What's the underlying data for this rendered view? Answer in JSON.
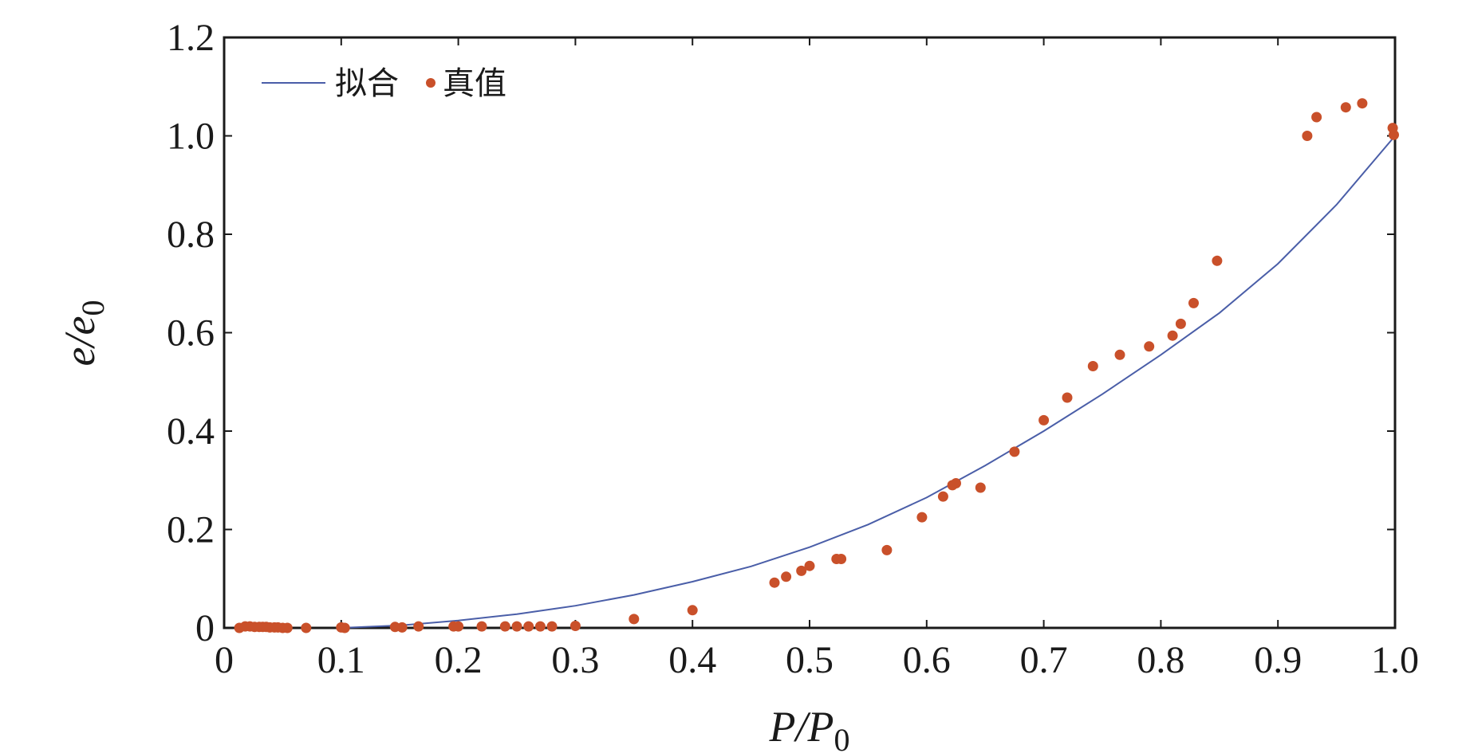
{
  "chart_data": {
    "type": "scatter+line",
    "xlabel_main": "P/P",
    "xlabel_sub": "0",
    "ylabel_main": "e/e",
    "ylabel_sub": "0",
    "xlim": [
      0,
      1.0
    ],
    "ylim": [
      0,
      1.2
    ],
    "x_ticks": [
      "0",
      "0.1",
      "0.2",
      "0.3",
      "0.4",
      "0.5",
      "0.6",
      "0.7",
      "0.8",
      "0.9",
      "1.0"
    ],
    "y_ticks": [
      "0",
      "0.2",
      "0.4",
      "0.6",
      "0.8",
      "1.0",
      "1.2"
    ],
    "legend": {
      "position": "top-left",
      "fit_label": "拟合",
      "true_label": "真值"
    },
    "colors": {
      "fit": "#4a5ea8",
      "true": "#c9502a",
      "axis": "#1a1a1a"
    },
    "fit_series": {
      "name": "拟合",
      "x": [
        0.1,
        0.15,
        0.2,
        0.25,
        0.3,
        0.35,
        0.4,
        0.45,
        0.5,
        0.55,
        0.6,
        0.65,
        0.7,
        0.75,
        0.8,
        0.85,
        0.9,
        0.95,
        1.0
      ],
      "y": [
        0.0,
        0.005,
        0.015,
        0.028,
        0.045,
        0.067,
        0.094,
        0.125,
        0.164,
        0.21,
        0.265,
        0.33,
        0.4,
        0.475,
        0.555,
        0.64,
        0.74,
        0.86,
        1.0
      ]
    },
    "true_series": {
      "name": "真值",
      "x": [
        0.013,
        0.018,
        0.022,
        0.026,
        0.03,
        0.033,
        0.036,
        0.039,
        0.043,
        0.046,
        0.05,
        0.054,
        0.07,
        0.1,
        0.103,
        0.146,
        0.152,
        0.166,
        0.196,
        0.2,
        0.22,
        0.24,
        0.25,
        0.26,
        0.27,
        0.28,
        0.3,
        0.35,
        0.4,
        0.47,
        0.48,
        0.493,
        0.5,
        0.523,
        0.527,
        0.566,
        0.596,
        0.614,
        0.622,
        0.625,
        0.646,
        0.675,
        0.7,
        0.72,
        0.742,
        0.765,
        0.79,
        0.81,
        0.817,
        0.828,
        0.848,
        0.925,
        0.933,
        0.958,
        0.972,
        0.998,
        0.999
      ],
      "y": [
        0.0,
        0.003,
        0.003,
        0.002,
        0.002,
        0.002,
        0.002,
        0.001,
        0.001,
        0.001,
        0.0,
        0.0,
        0.0,
        0.001,
        0.0,
        0.002,
        0.001,
        0.003,
        0.003,
        0.003,
        0.003,
        0.003,
        0.003,
        0.003,
        0.003,
        0.003,
        0.004,
        0.018,
        0.036,
        0.092,
        0.104,
        0.116,
        0.126,
        0.14,
        0.14,
        0.158,
        0.225,
        0.267,
        0.29,
        0.294,
        0.285,
        0.358,
        0.422,
        0.468,
        0.532,
        0.555,
        0.572,
        0.594,
        0.618,
        0.66,
        0.746,
        1.0,
        1.038,
        1.058,
        1.066,
        1.016,
        1.002
      ]
    }
  }
}
